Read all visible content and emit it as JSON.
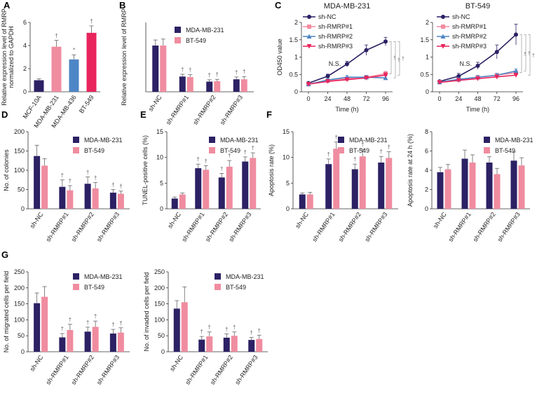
{
  "colors": {
    "blue": "#2b2164",
    "pink": "#f08ca0",
    "skyblue": "#4d86c6",
    "red": "#e8245c",
    "nc": "#2b2164",
    "r1": "#f08ca0",
    "r2": "#4d86c6",
    "r3": "#e8245c"
  },
  "chart_data": [
    {
      "id": "A",
      "type": "bar",
      "panel_label": "A",
      "title": "",
      "ylabel": "Relative expression level of RMRP normalized to GAPDH",
      "ylim": [
        0,
        6
      ],
      "yticks": [
        0,
        2,
        4,
        6
      ],
      "categories": [
        "MCF-10A",
        "MDA-MB-231",
        "MDA-MB-436",
        "BT-549"
      ],
      "values": [
        1.0,
        3.9,
        2.8,
        5.1
      ],
      "errors": [
        0.12,
        0.55,
        0.4,
        0.6
      ],
      "bar_colors": [
        "#2b2164",
        "#f08ca0",
        "#4d86c6",
        "#e8245c"
      ],
      "marks": [
        "",
        "†",
        "*",
        "†"
      ]
    },
    {
      "id": "B",
      "type": "bar",
      "panel_label": "B",
      "title": "",
      "ylabel": "Relative expression level of RMRP",
      "ylim": [
        0,
        1.5
      ],
      "yticks": [],
      "categories": [
        "sh-NC",
        "sh-RMRP#1",
        "sh-RMRP#2",
        "sh-RMRP#3"
      ],
      "series": [
        {
          "name": "MDA-MB-231",
          "values": [
            1.0,
            0.33,
            0.22,
            0.27
          ],
          "errors": [
            0.12,
            0.05,
            0.04,
            0.05
          ],
          "marks": [
            "",
            "†",
            "†",
            "†"
          ]
        },
        {
          "name": "BT-549",
          "values": [
            1.0,
            0.32,
            0.23,
            0.27
          ],
          "errors": [
            0.14,
            0.05,
            0.04,
            0.06
          ],
          "marks": [
            "",
            "†",
            "†",
            "†"
          ]
        }
      ]
    },
    {
      "id": "C1",
      "type": "line",
      "panel_label": "C",
      "title": "MDA-MB-231",
      "ylabel": "OD450 value",
      "xlabel": "Time (h)",
      "ylim": [
        0,
        2.0
      ],
      "yticks": [
        0,
        0.5,
        1.0,
        1.5,
        2.0
      ],
      "x": [
        0,
        24,
        48,
        72,
        96
      ],
      "annotation": "N.S.",
      "series": [
        {
          "name": "sh-NC",
          "values": [
            0.25,
            0.45,
            0.8,
            1.2,
            1.45
          ],
          "errors": [
            0.03,
            0.06,
            0.08,
            0.15,
            0.12
          ]
        },
        {
          "name": "sh-RMRP#1",
          "values": [
            0.22,
            0.32,
            0.38,
            0.42,
            0.52
          ],
          "errors": [
            0.02,
            0.04,
            0.05,
            0.05,
            0.07
          ]
        },
        {
          "name": "sh-RMRP#2",
          "values": [
            0.22,
            0.34,
            0.42,
            0.42,
            0.4
          ],
          "errors": [
            0.02,
            0.04,
            0.05,
            0.05,
            0.06
          ]
        },
        {
          "name": "sh-RMRP#3",
          "values": [
            0.22,
            0.3,
            0.35,
            0.4,
            0.48
          ],
          "errors": [
            0.02,
            0.04,
            0.05,
            0.05,
            0.07
          ]
        }
      ],
      "side_marks": [
        "†",
        "†",
        "†"
      ]
    },
    {
      "id": "C2",
      "type": "line",
      "panel_label": "",
      "title": "BT-549",
      "ylabel": "",
      "xlabel": "Time (h)",
      "ylim": [
        0,
        2.0
      ],
      "yticks": [
        0,
        0.5,
        1.0,
        1.5,
        2.0
      ],
      "x": [
        0,
        24,
        48,
        72,
        96
      ],
      "annotation": "N.S.",
      "series": [
        {
          "name": "sh-NC",
          "values": [
            0.3,
            0.45,
            0.75,
            1.15,
            1.65
          ],
          "errors": [
            0.03,
            0.08,
            0.1,
            0.2,
            0.3
          ]
        },
        {
          "name": "sh-RMRP#1",
          "values": [
            0.28,
            0.35,
            0.42,
            0.48,
            0.55
          ],
          "errors": [
            0.02,
            0.04,
            0.05,
            0.05,
            0.06
          ]
        },
        {
          "name": "sh-RMRP#2",
          "values": [
            0.28,
            0.36,
            0.42,
            0.48,
            0.6
          ],
          "errors": [
            0.02,
            0.04,
            0.05,
            0.05,
            0.06
          ]
        },
        {
          "name": "sh-RMRP#3",
          "values": [
            0.27,
            0.33,
            0.38,
            0.43,
            0.48
          ],
          "errors": [
            0.02,
            0.04,
            0.05,
            0.05,
            0.06
          ]
        }
      ],
      "side_marks": [
        "†",
        "†",
        "†"
      ]
    },
    {
      "id": "D",
      "type": "bar",
      "panel_label": "D",
      "title": "",
      "ylabel": "No. of colonies",
      "ylim": [
        0,
        200
      ],
      "yticks": [
        0,
        50,
        100,
        150,
        200
      ],
      "categories": [
        "sh-NC",
        "sh-RMRP#1",
        "sh-RMRP#2",
        "sh-RMRP#3"
      ],
      "series": [
        {
          "name": "MDA-MB-231",
          "values": [
            137,
            57,
            65,
            42
          ],
          "errors": [
            28,
            18,
            18,
            8
          ],
          "marks": [
            "",
            "†",
            "†",
            "†"
          ]
        },
        {
          "name": "BT-549",
          "values": [
            112,
            48,
            53,
            39
          ],
          "errors": [
            18,
            12,
            15,
            7
          ],
          "marks": [
            "",
            "†",
            "†",
            "†"
          ]
        }
      ]
    },
    {
      "id": "E",
      "type": "bar",
      "panel_label": "E",
      "title": "",
      "ylabel": "TUNEL-positive cells (%)",
      "ylim": [
        0,
        15
      ],
      "yticks": [
        0,
        5,
        10,
        15
      ],
      "categories": [
        "sh-NC",
        "sh-RMRP#1",
        "sh-RMRP#2",
        "sh-RMRP#3"
      ],
      "series": [
        {
          "name": "MDA-MB-231",
          "values": [
            2.0,
            7.9,
            6.1,
            9.2
          ],
          "errors": [
            0.3,
            0.8,
            0.8,
            0.9
          ],
          "marks": [
            "",
            "†",
            "†",
            "†"
          ]
        },
        {
          "name": "BT-549",
          "values": [
            2.8,
            7.6,
            8.2,
            9.9
          ],
          "errors": [
            0.3,
            0.8,
            1.2,
            1.0
          ],
          "marks": [
            "",
            "†",
            "†",
            "†"
          ]
        }
      ]
    },
    {
      "id": "F1",
      "type": "bar",
      "panel_label": "F",
      "title": "",
      "ylabel": "Apoptosis rate (%)",
      "ylim": [
        0,
        15
      ],
      "yticks": [
        0,
        5,
        10,
        15
      ],
      "categories": [
        "sh-NC",
        "sh-RMRP#1",
        "sh-RMRP#2",
        "sh-RMRP#3"
      ],
      "series": [
        {
          "name": "MDA-MB-231",
          "values": [
            2.8,
            8.7,
            7.7,
            9.0
          ],
          "errors": [
            0.3,
            1.0,
            1.0,
            1.2
          ],
          "marks": [
            "",
            "†",
            "†",
            "†"
          ]
        },
        {
          "name": "BT-549",
          "values": [
            2.8,
            11.7,
            10.2,
            9.9
          ],
          "errors": [
            0.4,
            1.3,
            1.4,
            1.2
          ],
          "marks": [
            "",
            "†",
            "†",
            "†"
          ]
        }
      ]
    },
    {
      "id": "F2",
      "type": "bar",
      "panel_label": "",
      "title": "",
      "ylabel": "Apoptosis rate at 24 h (%)",
      "ylim": [
        0,
        8
      ],
      "yticks": [
        0,
        2,
        4,
        6,
        8
      ],
      "categories": [
        "sh-NC",
        "sh-RMRP#1",
        "sh-RMRP#2",
        "sh-RMRP#3"
      ],
      "series": [
        {
          "name": "MDA-MB-231",
          "values": [
            3.8,
            5.2,
            4.8,
            5.0
          ],
          "errors": [
            0.5,
            0.9,
            0.6,
            0.9
          ],
          "marks": [
            "",
            "",
            "",
            ""
          ]
        },
        {
          "name": "BT-549",
          "values": [
            4.1,
            4.8,
            3.6,
            4.5
          ],
          "errors": [
            0.5,
            0.8,
            0.6,
            0.8
          ],
          "marks": [
            "",
            "",
            "",
            ""
          ]
        }
      ]
    },
    {
      "id": "G1",
      "type": "bar",
      "panel_label": "G",
      "title": "",
      "ylabel": "No. of migrated cells per field",
      "ylim": [
        0,
        250
      ],
      "yticks": [
        0,
        50,
        100,
        150,
        200,
        250
      ],
      "categories": [
        "sh-NC",
        "sh-RMRP#1",
        "sh-RMRP#2",
        "sh-RMRP#3"
      ],
      "series": [
        {
          "name": "MDA-MB-231",
          "values": [
            152,
            45,
            63,
            57
          ],
          "errors": [
            32,
            12,
            14,
            13
          ],
          "marks": [
            "",
            "†",
            "†",
            "†"
          ]
        },
        {
          "name": "BT-549",
          "values": [
            172,
            68,
            78,
            60
          ],
          "errors": [
            32,
            18,
            18,
            15
          ],
          "marks": [
            "",
            "†",
            "†",
            "†"
          ]
        }
      ]
    },
    {
      "id": "G2",
      "type": "bar",
      "panel_label": "",
      "title": "",
      "ylabel": "No. of invaded cells per field",
      "ylim": [
        0,
        250
      ],
      "yticks": [
        0,
        50,
        100,
        150,
        200,
        250
      ],
      "categories": [
        "sh-NC",
        "sh-RMRP#1",
        "sh-RMRP#2",
        "sh-RMRP#3"
      ],
      "series": [
        {
          "name": "MDA-MB-231",
          "values": [
            135,
            38,
            44,
            37
          ],
          "errors": [
            25,
            10,
            12,
            8
          ],
          "marks": [
            "",
            "†",
            "†",
            "†"
          ]
        },
        {
          "name": "BT-549",
          "values": [
            155,
            48,
            50,
            40
          ],
          "errors": [
            48,
            14,
            12,
            12
          ],
          "marks": [
            "",
            "†",
            "†",
            "†"
          ]
        }
      ]
    }
  ]
}
